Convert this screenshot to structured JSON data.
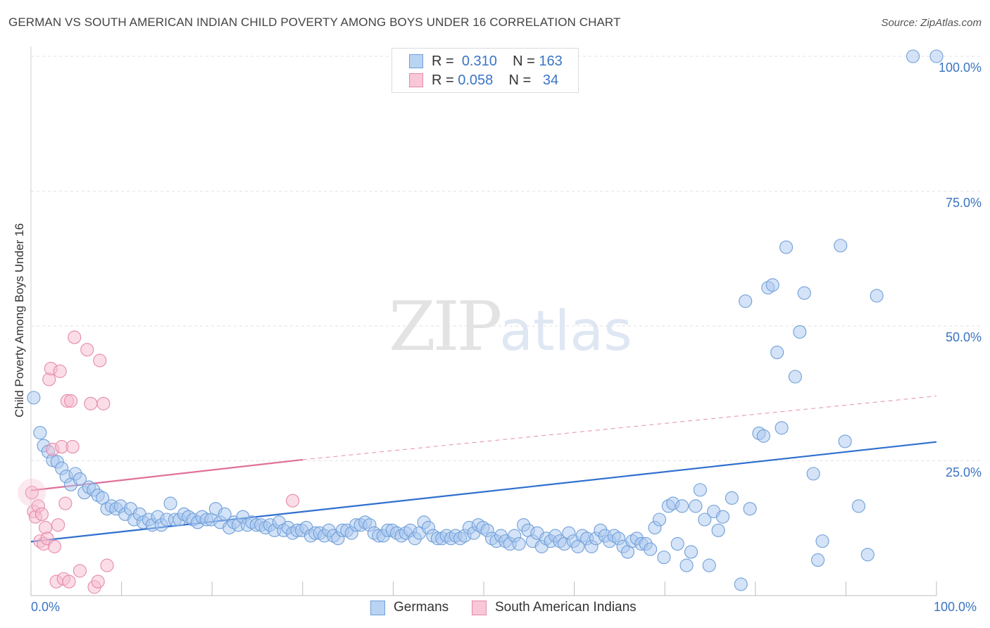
{
  "title": "GERMAN VS SOUTH AMERICAN INDIAN CHILD POVERTY AMONG BOYS UNDER 16 CORRELATION CHART",
  "source": "Source: ZipAtlas.com",
  "watermark": {
    "zip": "ZIP",
    "atlas": "atlas"
  },
  "legend": {
    "rows": [
      {
        "r_label": "R =",
        "r_value": "0.310",
        "n_label": "N =",
        "n_value": "163"
      },
      {
        "r_label": "R =",
        "r_value": "0.058",
        "n_label": "N =",
        "n_value": "34"
      }
    ]
  },
  "bottom_legend": [
    "Germans",
    "South American Indians"
  ],
  "colors": {
    "germans_fill": "#a9c8f0",
    "germans_stroke": "#6f9fd8",
    "germans_line": "#2f6fcf",
    "sai_fill": "#f7bcd0",
    "sai_stroke": "#e58aa9",
    "sai_line": "#e0709a",
    "tick_text": "#3a74c4",
    "grid": "#e2e2e2"
  },
  "chart_data": {
    "type": "scatter",
    "title": "GERMAN VS SOUTH AMERICAN INDIAN CHILD POVERTY AMONG BOYS UNDER 16 CORRELATION CHART",
    "xlabel": "",
    "ylabel": "Child Poverty Among Boys Under 16",
    "xlim": [
      0,
      100
    ],
    "ylim": [
      0,
      102
    ],
    "x_tick_labels": [
      "0.0%",
      "100.0%"
    ],
    "y_ticks": [
      25,
      50,
      75,
      100
    ],
    "y_tick_labels": [
      "25.0%",
      "50.0%",
      "75.0%",
      "100.0%"
    ],
    "grid": true,
    "legend_position": "top-center",
    "series": [
      {
        "name": "Germans",
        "stats": {
          "R": 0.31,
          "N": 163
        },
        "trend": {
          "x": [
            0,
            100
          ],
          "y": [
            10.0,
            28.5
          ]
        },
        "points": [
          [
            0.3,
            36.7
          ],
          [
            1.0,
            30.2
          ],
          [
            1.4,
            27.8
          ],
          [
            1.9,
            26.7
          ],
          [
            2.4,
            25.1
          ],
          [
            2.9,
            24.8
          ],
          [
            3.4,
            23.6
          ],
          [
            3.9,
            22.1
          ],
          [
            4.4,
            20.6
          ],
          [
            4.9,
            22.6
          ],
          [
            5.4,
            21.6
          ],
          [
            5.9,
            19.1
          ],
          [
            6.4,
            20.1
          ],
          [
            6.9,
            19.6
          ],
          [
            7.4,
            18.6
          ],
          [
            7.9,
            18.1
          ],
          [
            8.4,
            16.1
          ],
          [
            8.9,
            16.6
          ],
          [
            9.4,
            16.1
          ],
          [
            9.9,
            16.6
          ],
          [
            10.4,
            15.1
          ],
          [
            11.0,
            16.1
          ],
          [
            11.4,
            14.1
          ],
          [
            12.0,
            15.1
          ],
          [
            12.4,
            13.6
          ],
          [
            13.0,
            14.1
          ],
          [
            13.4,
            13.1
          ],
          [
            14.0,
            14.6
          ],
          [
            14.4,
            13.1
          ],
          [
            15.0,
            14.1
          ],
          [
            15.4,
            17.1
          ],
          [
            15.9,
            14.1
          ],
          [
            16.4,
            14.1
          ],
          [
            16.9,
            15.1
          ],
          [
            17.4,
            14.6
          ],
          [
            17.9,
            14.1
          ],
          [
            18.4,
            13.6
          ],
          [
            18.9,
            14.6
          ],
          [
            19.4,
            14.1
          ],
          [
            19.9,
            14.1
          ],
          [
            20.4,
            16.1
          ],
          [
            20.9,
            13.6
          ],
          [
            21.4,
            15.1
          ],
          [
            21.9,
            12.6
          ],
          [
            22.4,
            13.6
          ],
          [
            22.9,
            13.1
          ],
          [
            23.4,
            14.6
          ],
          [
            23.9,
            13.1
          ],
          [
            24.4,
            13.6
          ],
          [
            24.9,
            13.1
          ],
          [
            25.4,
            13.1
          ],
          [
            25.9,
            12.6
          ],
          [
            26.4,
            13.1
          ],
          [
            26.9,
            12.1
          ],
          [
            27.4,
            13.6
          ],
          [
            27.9,
            12.1
          ],
          [
            28.4,
            12.6
          ],
          [
            28.9,
            11.6
          ],
          [
            29.4,
            12.1
          ],
          [
            29.9,
            12.1
          ],
          [
            30.4,
            12.6
          ],
          [
            30.9,
            11.1
          ],
          [
            31.4,
            11.6
          ],
          [
            31.9,
            11.6
          ],
          [
            32.4,
            11.1
          ],
          [
            32.9,
            12.1
          ],
          [
            33.4,
            11.1
          ],
          [
            33.9,
            10.6
          ],
          [
            34.4,
            12.1
          ],
          [
            34.9,
            12.1
          ],
          [
            35.4,
            11.6
          ],
          [
            35.9,
            13.1
          ],
          [
            36.4,
            13.1
          ],
          [
            36.9,
            13.6
          ],
          [
            37.4,
            13.1
          ],
          [
            37.9,
            11.6
          ],
          [
            38.4,
            11.1
          ],
          [
            38.9,
            11.1
          ],
          [
            39.4,
            12.1
          ],
          [
            39.9,
            12.1
          ],
          [
            40.4,
            11.6
          ],
          [
            40.9,
            11.1
          ],
          [
            41.4,
            11.6
          ],
          [
            41.9,
            12.1
          ],
          [
            42.4,
            10.6
          ],
          [
            42.9,
            11.6
          ],
          [
            43.4,
            13.6
          ],
          [
            43.9,
            12.6
          ],
          [
            44.4,
            11.1
          ],
          [
            44.9,
            10.6
          ],
          [
            45.4,
            10.6
          ],
          [
            45.9,
            11.1
          ],
          [
            46.4,
            10.6
          ],
          [
            46.9,
            11.1
          ],
          [
            47.4,
            10.6
          ],
          [
            47.9,
            11.1
          ],
          [
            48.4,
            12.6
          ],
          [
            48.9,
            11.6
          ],
          [
            49.4,
            13.1
          ],
          [
            49.9,
            12.6
          ],
          [
            50.4,
            12.1
          ],
          [
            50.9,
            10.6
          ],
          [
            51.4,
            10.1
          ],
          [
            51.9,
            11.1
          ],
          [
            52.4,
            10.1
          ],
          [
            52.9,
            9.6
          ],
          [
            53.4,
            11.1
          ],
          [
            53.9,
            9.6
          ],
          [
            54.4,
            13.1
          ],
          [
            54.9,
            12.1
          ],
          [
            55.4,
            10.1
          ],
          [
            55.9,
            11.6
          ],
          [
            56.4,
            9.1
          ],
          [
            56.9,
            10.6
          ],
          [
            57.4,
            10.1
          ],
          [
            57.9,
            11.1
          ],
          [
            58.4,
            10.1
          ],
          [
            58.9,
            9.6
          ],
          [
            59.4,
            11.6
          ],
          [
            59.9,
            10.1
          ],
          [
            60.4,
            9.1
          ],
          [
            60.9,
            11.1
          ],
          [
            61.4,
            10.6
          ],
          [
            61.9,
            9.1
          ],
          [
            62.4,
            10.6
          ],
          [
            62.9,
            12.1
          ],
          [
            63.4,
            11.1
          ],
          [
            63.9,
            10.1
          ],
          [
            64.4,
            11.1
          ],
          [
            64.9,
            10.6
          ],
          [
            65.4,
            9.1
          ],
          [
            65.9,
            8.1
          ],
          [
            66.4,
            10.1
          ],
          [
            66.9,
            10.6
          ],
          [
            67.4,
            9.6
          ],
          [
            67.9,
            9.6
          ],
          [
            68.4,
            8.6
          ],
          [
            68.9,
            12.6
          ],
          [
            69.4,
            14.1
          ],
          [
            69.9,
            7.1
          ],
          [
            70.4,
            16.6
          ],
          [
            70.9,
            17.1
          ],
          [
            71.4,
            9.6
          ],
          [
            71.9,
            16.6
          ],
          [
            72.4,
            5.6
          ],
          [
            72.9,
            8.1
          ],
          [
            73.4,
            16.6
          ],
          [
            73.9,
            19.6
          ],
          [
            74.4,
            14.1
          ],
          [
            74.9,
            5.6
          ],
          [
            75.4,
            15.6
          ],
          [
            75.9,
            12.1
          ],
          [
            76.4,
            14.6
          ],
          [
            77.4,
            18.1
          ],
          [
            78.4,
            2.1
          ],
          [
            78.9,
            54.6
          ],
          [
            79.4,
            16.1
          ],
          [
            80.4,
            30.1
          ],
          [
            80.9,
            29.6
          ],
          [
            81.4,
            57.1
          ],
          [
            81.9,
            57.6
          ],
          [
            82.4,
            45.1
          ],
          [
            82.9,
            31.1
          ],
          [
            83.4,
            64.6
          ],
          [
            84.4,
            40.6
          ],
          [
            84.9,
            48.9
          ],
          [
            85.4,
            56.1
          ],
          [
            86.4,
            22.6
          ],
          [
            86.9,
            6.6
          ],
          [
            87.4,
            10.1
          ],
          [
            89.4,
            64.9
          ],
          [
            89.9,
            28.6
          ],
          [
            91.4,
            16.6
          ],
          [
            92.4,
            7.6
          ],
          [
            93.4,
            55.6
          ],
          [
            97.4,
            100.0
          ],
          [
            100.0,
            100.0
          ]
        ]
      },
      {
        "name": "South American Indians",
        "stats": {
          "R": 0.058,
          "N": 34
        },
        "trend": {
          "x": [
            0,
            30
          ],
          "y": [
            19.5,
            25.2
          ]
        },
        "trend_extension": {
          "x": [
            30,
            100
          ],
          "y": [
            25.2,
            37.0
          ]
        },
        "points": [
          [
            0.1,
            19.1
          ],
          [
            0.3,
            15.6
          ],
          [
            0.5,
            14.6
          ],
          [
            0.8,
            16.6
          ],
          [
            1.0,
            10.1
          ],
          [
            1.2,
            15.1
          ],
          [
            1.4,
            9.6
          ],
          [
            1.6,
            12.6
          ],
          [
            1.8,
            10.6
          ],
          [
            2.0,
            40.1
          ],
          [
            2.2,
            42.1
          ],
          [
            2.4,
            27.1
          ],
          [
            2.6,
            9.1
          ],
          [
            2.8,
            2.6
          ],
          [
            3.0,
            13.1
          ],
          [
            3.2,
            41.6
          ],
          [
            3.4,
            27.6
          ],
          [
            3.6,
            3.1
          ],
          [
            3.8,
            17.1
          ],
          [
            4.0,
            36.1
          ],
          [
            4.2,
            2.6
          ],
          [
            4.4,
            36.1
          ],
          [
            4.6,
            27.6
          ],
          [
            4.8,
            47.9
          ],
          [
            5.4,
            4.6
          ],
          [
            6.2,
            45.6
          ],
          [
            6.6,
            35.6
          ],
          [
            7.0,
            1.6
          ],
          [
            7.4,
            2.6
          ],
          [
            7.6,
            43.6
          ],
          [
            8.0,
            35.6
          ],
          [
            8.4,
            5.6
          ],
          [
            28.9,
            17.6
          ]
        ]
      }
    ]
  }
}
